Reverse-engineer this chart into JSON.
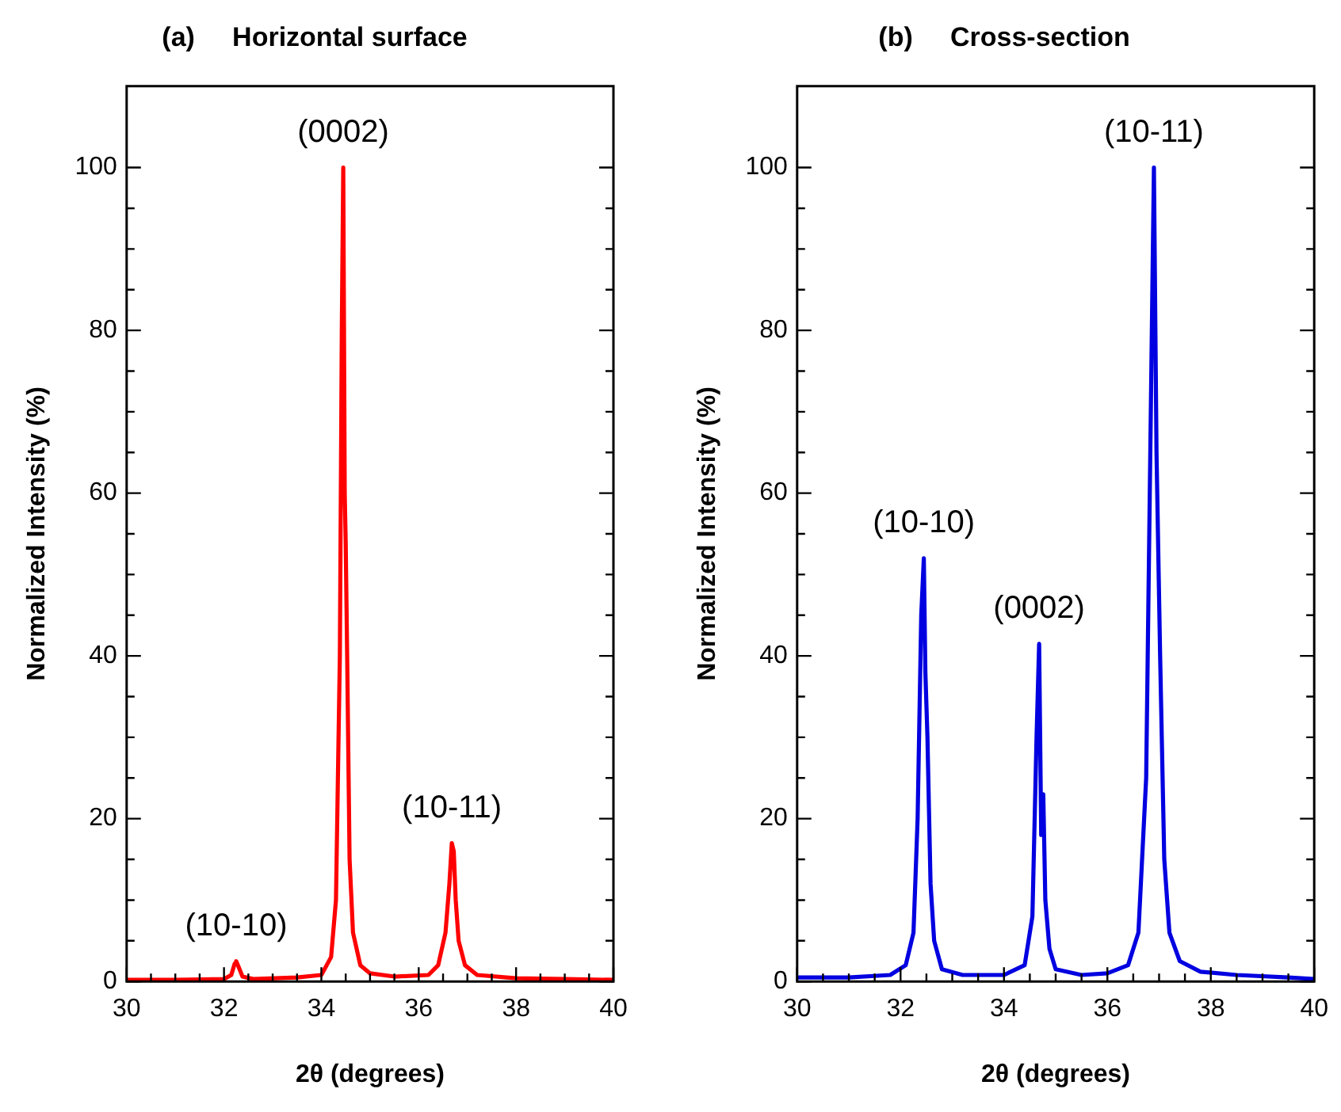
{
  "chart_data": [
    {
      "type": "line",
      "title": "(a)     Horizontal surface",
      "xlabel": "2θ (degrees)",
      "ylabel": "Normalized Intensity (%)",
      "xlim": [
        30,
        40
      ],
      "ylim": [
        0,
        110
      ],
      "xticks": [
        30,
        {
          "value": 30.5,
          "label": null
        },
        {
          "value": 31,
          "label": null
        },
        {
          "value": 31.5,
          "label": null
        },
        32,
        {
          "value": 32.5,
          "label": null
        },
        {
          "value": 33,
          "label": null
        },
        {
          "value": 33.5,
          "label": null
        },
        34,
        {
          "value": 34.5,
          "label": null
        },
        {
          "value": 35,
          "label": null
        },
        {
          "value": 35.5,
          "label": null
        },
        36,
        {
          "value": 36.5,
          "label": null
        },
        {
          "value": 37,
          "label": null
        },
        {
          "value": 37.5,
          "label": null
        },
        38,
        {
          "value": 38.5,
          "label": null
        },
        {
          "value": 39,
          "label": null
        },
        {
          "value": 39.5,
          "label": null
        },
        40
      ],
      "yticks": [
        0,
        {
          "value": 5,
          "label": null
        },
        {
          "value": 10,
          "label": null
        },
        {
          "value": 15,
          "label": null
        },
        20,
        {
          "value": 25,
          "label": null
        },
        {
          "value": 30,
          "label": null
        },
        {
          "value": 35,
          "label": null
        },
        40,
        {
          "value": 45,
          "label": null
        },
        {
          "value": 50,
          "label": null
        },
        {
          "value": 55,
          "label": null
        },
        60,
        {
          "value": 65,
          "label": null
        },
        {
          "value": 70,
          "label": null
        },
        {
          "value": 75,
          "label": null
        },
        80,
        {
          "value": 85,
          "label": null
        },
        {
          "value": 90,
          "label": null
        },
        {
          "value": 95,
          "label": null
        },
        100
      ],
      "grid": false,
      "legend": false,
      "marker": "none",
      "line_style": "solid",
      "series": [
        {
          "color": "#ff0000",
          "x": [
            30,
            31,
            32,
            32.15,
            32.22,
            32.25,
            32.3,
            32.38,
            32.6,
            33.5,
            34.0,
            34.2,
            34.3,
            34.38,
            34.42,
            34.45,
            34.48,
            34.5,
            34.53,
            34.58,
            34.65,
            34.8,
            35,
            35.5,
            36.2,
            36.4,
            36.55,
            36.63,
            36.68,
            36.72,
            36.76,
            36.82,
            36.95,
            37.2,
            38,
            39,
            40
          ],
          "values": [
            0.2,
            0.2,
            0.3,
            0.8,
            2.2,
            2.5,
            1.8,
            0.6,
            0.3,
            0.5,
            0.8,
            3,
            10,
            40,
            80,
            100,
            60,
            54,
            40,
            15,
            6,
            2,
            1,
            0.6,
            0.8,
            2,
            6,
            12,
            17,
            16,
            10,
            5,
            2,
            0.8,
            0.4,
            0.3,
            0.2
          ]
        }
      ],
      "annotations": [
        {
          "text": "(10-10)",
          "x": 32.25,
          "y": 2.5
        },
        {
          "text": "(0002)",
          "x": 34.45,
          "y": 100
        },
        {
          "text": "(10-11)",
          "x": 36.68,
          "y": 17
        }
      ]
    },
    {
      "type": "line",
      "title": "(b)     Cross-section",
      "xlabel": "2θ (degrees)",
      "ylabel": "Normalized Intensity (%)",
      "xlim": [
        30,
        40
      ],
      "ylim": [
        0,
        110
      ],
      "xticks": [
        30,
        {
          "value": 30.5,
          "label": null
        },
        {
          "value": 31,
          "label": null
        },
        {
          "value": 31.5,
          "label": null
        },
        32,
        {
          "value": 32.5,
          "label": null
        },
        {
          "value": 33,
          "label": null
        },
        {
          "value": 33.5,
          "label": null
        },
        34,
        {
          "value": 34.5,
          "label": null
        },
        {
          "value": 35,
          "label": null
        },
        {
          "value": 35.5,
          "label": null
        },
        36,
        {
          "value": 36.5,
          "label": null
        },
        {
          "value": 37,
          "label": null
        },
        {
          "value": 37.5,
          "label": null
        },
        38,
        {
          "value": 38.5,
          "label": null
        },
        {
          "value": 39,
          "label": null
        },
        {
          "value": 39.5,
          "label": null
        },
        40
      ],
      "yticks": [
        0,
        {
          "value": 5,
          "label": null
        },
        {
          "value": 10,
          "label": null
        },
        {
          "value": 15,
          "label": null
        },
        20,
        {
          "value": 25,
          "label": null
        },
        {
          "value": 30,
          "label": null
        },
        {
          "value": 35,
          "label": null
        },
        40,
        {
          "value": 45,
          "label": null
        },
        {
          "value": 50,
          "label": null
        },
        {
          "value": 55,
          "label": null
        },
        60,
        {
          "value": 65,
          "label": null
        },
        {
          "value": 70,
          "label": null
        },
        {
          "value": 75,
          "label": null
        },
        80,
        {
          "value": 85,
          "label": null
        },
        {
          "value": 90,
          "label": null
        },
        {
          "value": 95,
          "label": null
        },
        100
      ],
      "grid": false,
      "legend": false,
      "marker": "none",
      "line_style": "solid",
      "series": [
        {
          "color": "#0000e0",
          "x": [
            30,
            31,
            31.8,
            32.1,
            32.25,
            32.33,
            32.4,
            32.45,
            32.48,
            32.52,
            32.58,
            32.65,
            32.8,
            33.2,
            34,
            34.4,
            34.55,
            34.63,
            34.68,
            34.72,
            34.76,
            34.8,
            34.88,
            35,
            35.5,
            36,
            36.4,
            36.6,
            36.75,
            36.85,
            36.9,
            36.95,
            37.02,
            37.1,
            37.2,
            37.4,
            37.8,
            38.5,
            39.5,
            40
          ],
          "values": [
            0.5,
            0.5,
            0.8,
            2,
            6,
            20,
            45,
            52,
            38,
            30,
            12,
            5,
            1.5,
            0.8,
            0.8,
            2,
            8,
            30,
            41.5,
            18,
            23,
            10,
            4,
            1.5,
            0.8,
            1,
            2,
            6,
            25,
            75,
            100,
            65,
            40,
            15,
            6,
            2.5,
            1.2,
            0.8,
            0.5,
            0.3
          ]
        }
      ],
      "annotations": [
        {
          "text": "(10-10)",
          "x": 32.45,
          "y": 52
        },
        {
          "text": "(0002)",
          "x": 34.68,
          "y": 41.5
        },
        {
          "text": "(10-11)",
          "x": 36.9,
          "y": 100
        }
      ]
    }
  ]
}
